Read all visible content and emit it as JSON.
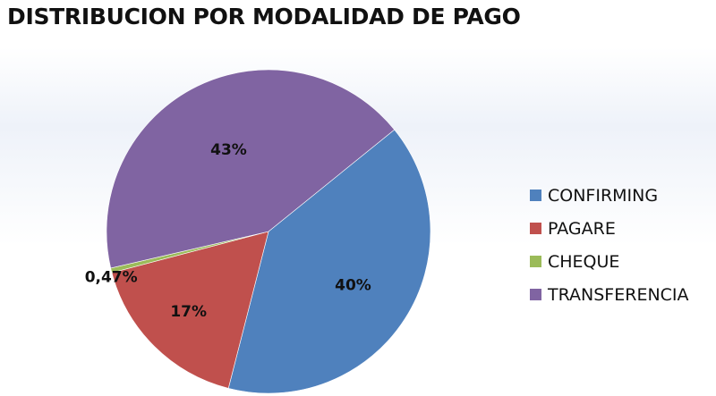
{
  "chart_data": {
    "type": "pie",
    "title": "DISTRIBUCION POR MODALIDAD DE PAGO",
    "categories": [
      "CONFIRMING",
      "PAGARE",
      "CHEQUE",
      "TRANSFERENCIA"
    ],
    "values": [
      40,
      17,
      0.47,
      43
    ],
    "labels": [
      "40%",
      "17%",
      "0,47%",
      "43%"
    ],
    "colors": [
      "#4f81bd",
      "#c0504d",
      "#9bbb59",
      "#8064a2"
    ],
    "legend_position": "right"
  }
}
